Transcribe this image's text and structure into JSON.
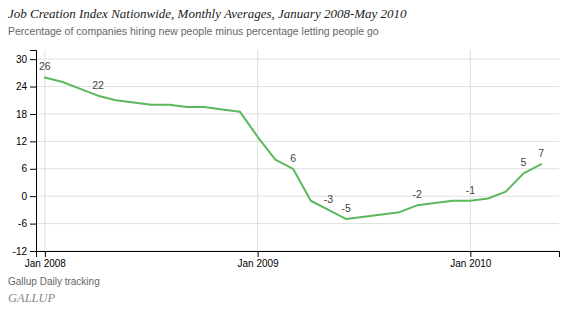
{
  "chart_data": {
    "type": "line",
    "title": "Job Creation Index Nationwide, Monthly Averages, January 2008-May 2010",
    "subtitle": "Percentage of companies hiring new people minus percentage letting people go",
    "source": "Gallup Daily tracking",
    "credit": "GALLUP",
    "color": "#5cb85c",
    "x": [
      0,
      1,
      2,
      3,
      4,
      5,
      6,
      7,
      8,
      9,
      10,
      11,
      12,
      13,
      14,
      15,
      16,
      17,
      18,
      19,
      20,
      21,
      22,
      23,
      24,
      25,
      26,
      27,
      28
    ],
    "values": [
      26,
      25,
      23.5,
      22,
      21,
      20.5,
      20,
      20,
      19.5,
      19.5,
      19,
      18.5,
      13,
      8,
      6,
      -1,
      -3,
      -5,
      -4.5,
      -4,
      -3.5,
      -2,
      -1.5,
      -1,
      -1,
      -0.5,
      1,
      5,
      7
    ],
    "xlim": [
      -0.5,
      29
    ],
    "xticks": [
      {
        "value": 0,
        "label": "Jan 2008"
      },
      {
        "value": 12,
        "label": "Jan 2009"
      },
      {
        "value": 24,
        "label": "Jan 2010"
      }
    ],
    "ylim": [
      -12,
      32
    ],
    "yticks": [
      -12,
      -6,
      0,
      6,
      12,
      18,
      24,
      30
    ],
    "grid": true,
    "annotations": [
      {
        "x": 0,
        "y": 26,
        "text": "26"
      },
      {
        "x": 3,
        "y": 22,
        "text": "22"
      },
      {
        "x": 14,
        "y": 6,
        "text": "6"
      },
      {
        "x": 16,
        "y": -3,
        "text": "-3"
      },
      {
        "x": 17,
        "y": -5,
        "text": "-5"
      },
      {
        "x": 21,
        "y": -2,
        "text": "-2"
      },
      {
        "x": 24,
        "y": -1,
        "text": "-1"
      },
      {
        "x": 27,
        "y": 5,
        "text": "5"
      },
      {
        "x": 28,
        "y": 7,
        "text": "7"
      }
    ]
  }
}
